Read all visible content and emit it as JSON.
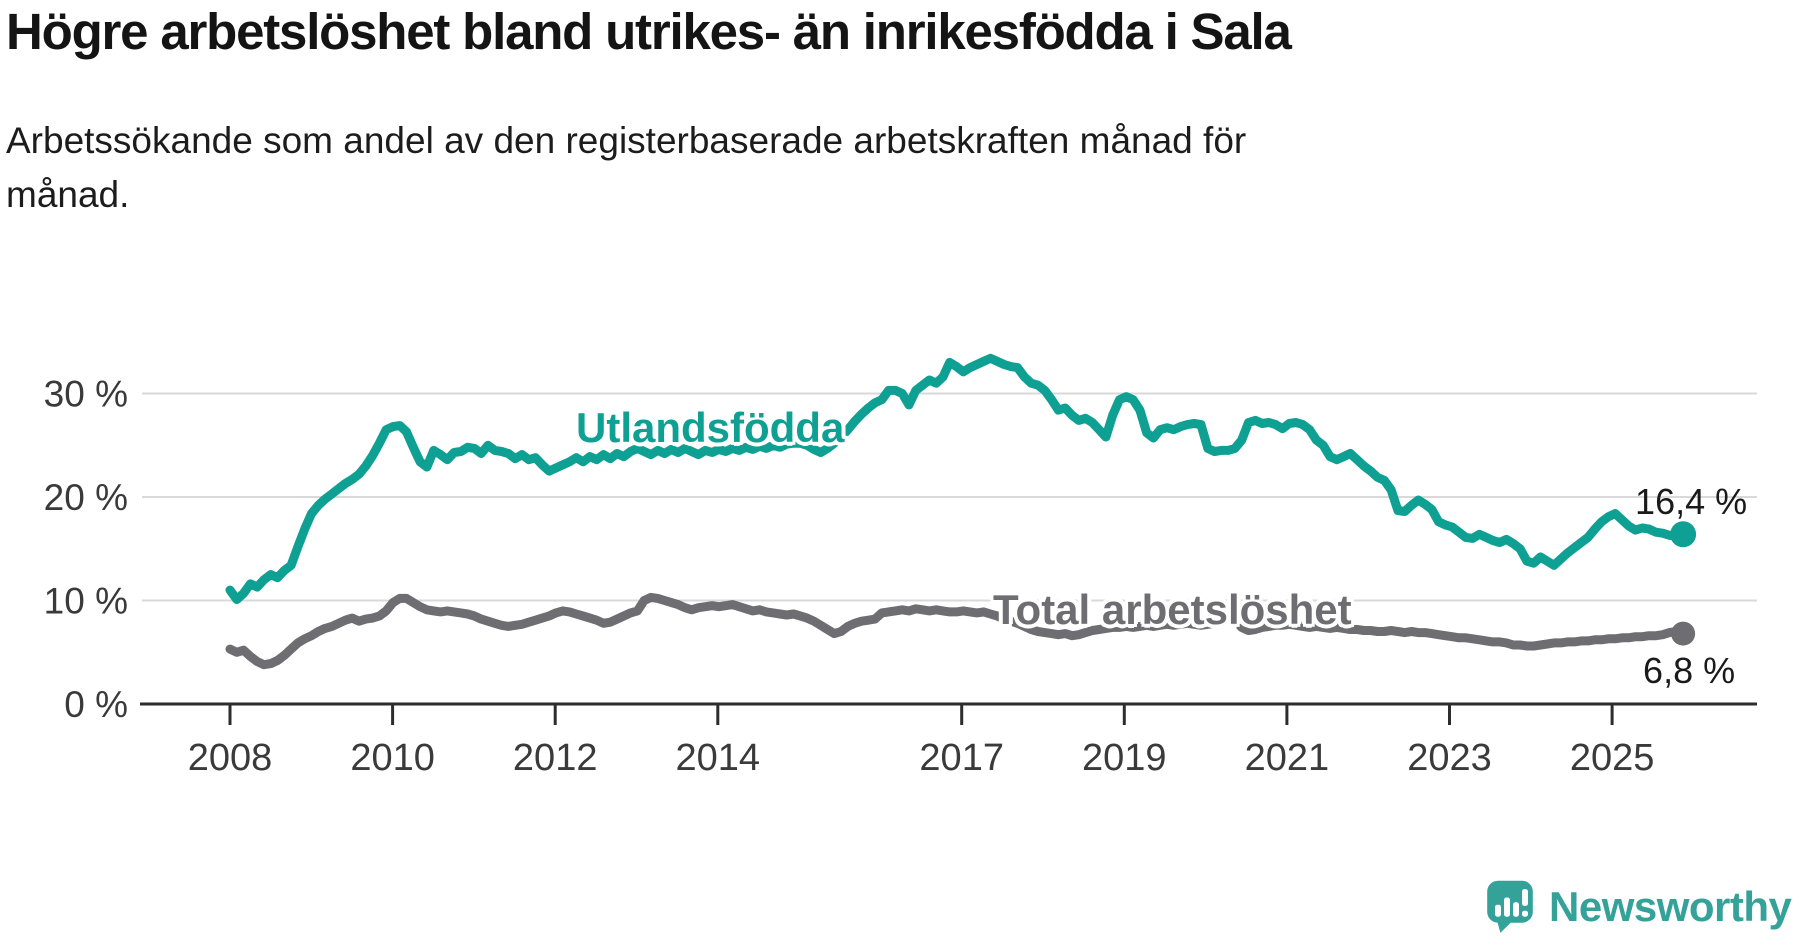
{
  "title": "Högre arbetslöshet bland utrikes- än inrikesfödda i Sala",
  "subtitle": "Arbetssökande som andel av den registerbaserade arbetskraften månad för månad.",
  "branding": {
    "name": "Newsworthy",
    "icon": "newsworthy-speech-bubble-bar-chart-icon",
    "color": "#35a29a"
  },
  "style": {
    "background": "#ffffff",
    "grid_color": "#d9d9d9",
    "axis_line_color": "#2d2d2d",
    "axis_text_color": "#3a3a3a",
    "end_label_color": "#1a1a1a"
  },
  "chart_data": {
    "type": "line",
    "unit": "%",
    "frequency": "monthly",
    "x_range": {
      "start": "2008-01",
      "end": "2025-11"
    },
    "x_axis": {
      "ticks": [
        2008,
        2010,
        2012,
        2014,
        2017,
        2019,
        2021,
        2023,
        2025
      ]
    },
    "y_axis": {
      "range": [
        0,
        34.5
      ],
      "ticks": [
        {
          "value": 0,
          "label": "0 %"
        },
        {
          "value": 10,
          "label": "10 %"
        },
        {
          "value": 20,
          "label": "20 %"
        },
        {
          "value": 30,
          "label": "30 %"
        }
      ]
    },
    "grid": "horizontal",
    "legend_position": "inline-labels",
    "series": [
      {
        "name": "Utlandsfödda",
        "color": "#0fa094",
        "end_value": 16.4,
        "end_label": "16,4 %",
        "values": [
          11.0,
          10.1,
          10.7,
          11.6,
          11.3,
          12.0,
          12.5,
          12.2,
          12.9,
          13.4,
          15.2,
          16.9,
          18.4,
          19.2,
          19.8,
          20.3,
          20.8,
          21.3,
          21.7,
          22.2,
          23.0,
          24.0,
          25.2,
          26.5,
          26.8,
          26.9,
          26.3,
          24.8,
          23.4,
          22.9,
          24.5,
          24.1,
          23.6,
          24.3,
          24.4,
          24.8,
          24.7,
          24.2,
          25.0,
          24.5,
          24.4,
          24.2,
          23.7,
          24.1,
          23.6,
          23.8,
          23.1,
          22.5,
          22.8,
          23.1,
          23.4,
          23.8,
          23.4,
          23.9,
          23.6,
          24.1,
          23.7,
          24.2,
          23.9,
          24.4,
          24.7,
          24.4,
          24.1,
          24.5,
          24.2,
          24.6,
          24.3,
          24.7,
          24.4,
          24.1,
          24.5,
          24.3,
          24.6,
          24.4,
          24.7,
          24.5,
          24.8,
          24.6,
          24.9,
          24.7,
          25.0,
          24.8,
          25.1,
          25.2,
          25.2,
          25.0,
          24.6,
          24.3,
          24.7,
          25.2,
          25.8,
          26.5,
          27.3,
          28.0,
          28.6,
          29.1,
          29.4,
          30.3,
          30.3,
          30.0,
          28.9,
          30.3,
          30.8,
          31.3,
          31.0,
          31.6,
          33.0,
          32.6,
          32.1,
          32.5,
          32.8,
          33.1,
          33.4,
          33.1,
          32.8,
          32.6,
          32.5,
          31.6,
          31.0,
          30.8,
          30.3,
          29.4,
          28.4,
          28.6,
          27.9,
          27.4,
          27.6,
          27.2,
          26.5,
          25.8,
          27.9,
          29.4,
          29.7,
          29.4,
          28.4,
          26.2,
          25.7,
          26.5,
          26.7,
          26.5,
          26.8,
          27.0,
          27.1,
          27.0,
          24.7,
          24.4,
          24.5,
          24.5,
          24.7,
          25.5,
          27.2,
          27.4,
          27.1,
          27.2,
          27.0,
          26.6,
          27.1,
          27.2,
          27.0,
          26.5,
          25.5,
          25.0,
          23.9,
          23.6,
          23.9,
          24.2,
          23.6,
          23.0,
          22.5,
          21.9,
          21.6,
          20.7,
          18.7,
          18.6,
          19.2,
          19.7,
          19.3,
          18.8,
          17.6,
          17.3,
          17.1,
          16.6,
          16.1,
          16.0,
          16.4,
          16.1,
          15.8,
          15.6,
          15.9,
          15.5,
          15.0,
          13.8,
          13.6,
          14.2,
          13.8,
          13.4,
          14.0,
          14.6,
          15.1,
          15.6,
          16.1,
          16.9,
          17.6,
          18.1,
          18.4,
          17.8,
          17.2,
          16.8,
          17.0,
          16.9,
          16.6,
          16.5,
          16.3,
          16.2,
          16.4
        ]
      },
      {
        "name": "Total arbetslöshet",
        "color": "#6d6d72",
        "end_value": 6.8,
        "end_label": "6,8 %",
        "values": [
          5.3,
          5.0,
          5.2,
          4.6,
          4.1,
          3.8,
          3.9,
          4.2,
          4.7,
          5.3,
          5.9,
          6.3,
          6.6,
          7.0,
          7.3,
          7.5,
          7.8,
          8.1,
          8.3,
          8.0,
          8.2,
          8.3,
          8.5,
          9.0,
          9.8,
          10.2,
          10.2,
          9.8,
          9.4,
          9.1,
          9.0,
          8.9,
          9.0,
          8.9,
          8.8,
          8.7,
          8.5,
          8.2,
          8.0,
          7.8,
          7.6,
          7.5,
          7.6,
          7.7,
          7.9,
          8.1,
          8.3,
          8.5,
          8.8,
          9.0,
          8.9,
          8.7,
          8.5,
          8.3,
          8.1,
          7.8,
          7.9,
          8.2,
          8.5,
          8.8,
          9.0,
          10.0,
          10.3,
          10.2,
          10.0,
          9.8,
          9.6,
          9.3,
          9.1,
          9.3,
          9.4,
          9.5,
          9.4,
          9.5,
          9.6,
          9.4,
          9.2,
          9.0,
          9.1,
          8.9,
          8.8,
          8.7,
          8.6,
          8.7,
          8.5,
          8.3,
          8.0,
          7.6,
          7.2,
          6.8,
          7.0,
          7.5,
          7.8,
          8.0,
          8.1,
          8.2,
          8.8,
          8.9,
          9.0,
          9.1,
          9.0,
          9.2,
          9.1,
          9.0,
          9.1,
          9.0,
          8.9,
          8.9,
          9.0,
          8.9,
          8.8,
          8.9,
          8.7,
          8.5,
          8.2,
          8.0,
          7.8,
          7.5,
          7.2,
          7.0,
          6.9,
          6.8,
          6.7,
          6.8,
          6.6,
          6.7,
          6.9,
          7.1,
          7.2,
          7.3,
          7.4,
          7.4,
          7.5,
          7.4,
          7.5,
          7.6,
          7.5,
          7.6,
          7.7,
          7.6,
          7.7,
          7.8,
          7.7,
          7.6,
          7.7,
          7.8,
          8.0,
          8.3,
          8.1,
          7.4,
          7.1,
          7.2,
          7.4,
          7.5,
          7.6,
          7.6,
          7.7,
          7.6,
          7.5,
          7.4,
          7.5,
          7.4,
          7.3,
          7.4,
          7.3,
          7.2,
          7.2,
          7.1,
          7.1,
          7.0,
          7.0,
          7.1,
          7.0,
          6.9,
          7.0,
          6.9,
          6.9,
          6.8,
          6.7,
          6.6,
          6.5,
          6.4,
          6.4,
          6.3,
          6.2,
          6.1,
          6.0,
          6.0,
          5.9,
          5.7,
          5.7,
          5.6,
          5.6,
          5.7,
          5.8,
          5.9,
          5.9,
          6.0,
          6.0,
          6.1,
          6.1,
          6.2,
          6.2,
          6.3,
          6.3,
          6.4,
          6.4,
          6.5,
          6.5,
          6.6,
          6.6,
          6.7,
          6.9,
          7.0,
          6.8
        ]
      }
    ]
  }
}
